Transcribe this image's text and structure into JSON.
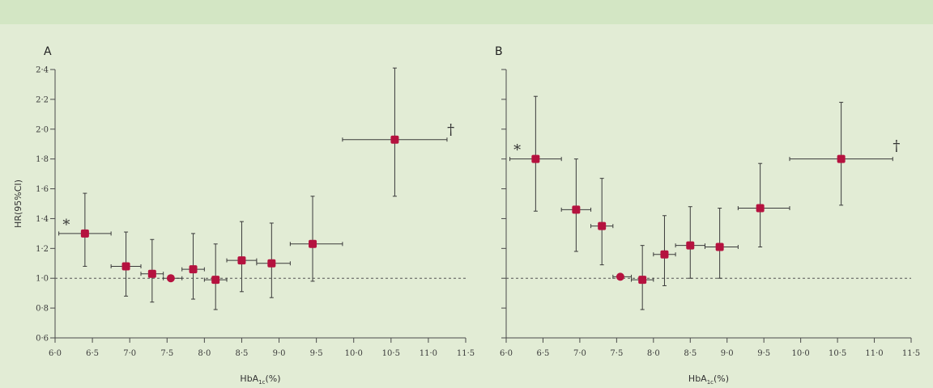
{
  "colors": {
    "background": "#e2ecd5",
    "band": "#d3e6c4",
    "marker": "#b5123f",
    "axis": "#4a4a4a",
    "reference_line": "#555555"
  },
  "chart_data": [
    {
      "type": "scatter",
      "panel_label": "A",
      "xlabel": "HbA",
      "xlabel_sub": "1c",
      "xlabel_unit": "(%)",
      "ylabel": "HR(95%CI)",
      "xlim": [
        6.0,
        11.5
      ],
      "ylim": [
        0.6,
        2.4
      ],
      "x_ticks": [
        "6·0",
        "6·5",
        "7·0",
        "7·5",
        "8·0",
        "8·5",
        "9·0",
        "9·5",
        "10·0",
        "10·5",
        "11·0",
        "11·5"
      ],
      "y_ticks": [
        "0·6",
        "0·8",
        "1·0",
        "1·2",
        "1·4",
        "1·6",
        "1·8",
        "2·0",
        "2·2",
        "2·4"
      ],
      "reference_y": 1.0,
      "points": [
        {
          "x": 6.4,
          "y": 1.3,
          "xlo": 6.05,
          "xhi": 6.75,
          "ylo": 1.08,
          "yhi": 1.57
        },
        {
          "x": 6.95,
          "y": 1.08,
          "xlo": 6.75,
          "xhi": 7.15,
          "ylo": 0.88,
          "yhi": 1.31
        },
        {
          "x": 7.3,
          "y": 1.03,
          "xlo": 7.15,
          "xhi": 7.45,
          "ylo": 0.84,
          "yhi": 1.26
        },
        {
          "x": 7.55,
          "y": 1.0,
          "xlo": 7.45,
          "xhi": 7.7,
          "ylo": 1.0,
          "yhi": 1.0
        },
        {
          "x": 7.85,
          "y": 1.06,
          "xlo": 7.7,
          "xhi": 8.0,
          "ylo": 0.86,
          "yhi": 1.3
        },
        {
          "x": 8.15,
          "y": 0.99,
          "xlo": 8.0,
          "xhi": 8.3,
          "ylo": 0.79,
          "yhi": 1.23
        },
        {
          "x": 8.5,
          "y": 1.12,
          "xlo": 8.3,
          "xhi": 8.7,
          "ylo": 0.91,
          "yhi": 1.38
        },
        {
          "x": 8.9,
          "y": 1.1,
          "xlo": 8.7,
          "xhi": 9.15,
          "ylo": 0.87,
          "yhi": 1.37
        },
        {
          "x": 9.45,
          "y": 1.23,
          "xlo": 9.15,
          "xhi": 9.85,
          "ylo": 0.98,
          "yhi": 1.55
        },
        {
          "x": 10.55,
          "y": 1.93,
          "xlo": 9.85,
          "xhi": 11.25,
          "ylo": 1.55,
          "yhi": 2.41
        }
      ],
      "annotations": [
        {
          "text": "*",
          "x": 6.15,
          "y": 1.36
        },
        {
          "text": "†",
          "x": 11.3,
          "y": 2.0
        }
      ]
    },
    {
      "type": "scatter",
      "panel_label": "B",
      "xlabel": "HbA",
      "xlabel_sub": "1c",
      "xlabel_unit": "(%)",
      "ylabel": "",
      "xlim": [
        6.0,
        11.5
      ],
      "ylim": [
        0.6,
        2.4
      ],
      "x_ticks": [
        "6·0",
        "6·5",
        "7·0",
        "7·5",
        "8·0",
        "8·5",
        "9·0",
        "9·5",
        "10·0",
        "10·5",
        "11·0",
        "11·5"
      ],
      "y_ticks": [],
      "reference_y": 1.0,
      "points": [
        {
          "x": 6.4,
          "y": 1.8,
          "xlo": 6.05,
          "xhi": 6.75,
          "ylo": 1.45,
          "yhi": 2.22
        },
        {
          "x": 6.95,
          "y": 1.46,
          "xlo": 6.75,
          "xhi": 7.15,
          "ylo": 1.18,
          "yhi": 1.8
        },
        {
          "x": 7.3,
          "y": 1.35,
          "xlo": 7.15,
          "xhi": 7.45,
          "ylo": 1.09,
          "yhi": 1.67
        },
        {
          "x": 7.55,
          "y": 1.01,
          "xlo": 7.45,
          "xhi": 7.7,
          "ylo": 1.01,
          "yhi": 1.01
        },
        {
          "x": 7.85,
          "y": 0.99,
          "xlo": 7.7,
          "xhi": 8.0,
          "ylo": 0.79,
          "yhi": 1.22
        },
        {
          "x": 8.15,
          "y": 1.16,
          "xlo": 8.0,
          "xhi": 8.3,
          "ylo": 0.95,
          "yhi": 1.42
        },
        {
          "x": 8.5,
          "y": 1.22,
          "xlo": 8.3,
          "xhi": 8.7,
          "ylo": 1.0,
          "yhi": 1.48
        },
        {
          "x": 8.9,
          "y": 1.21,
          "xlo": 8.7,
          "xhi": 9.15,
          "ylo": 1.0,
          "yhi": 1.47
        },
        {
          "x": 9.45,
          "y": 1.47,
          "xlo": 9.15,
          "xhi": 9.85,
          "ylo": 1.21,
          "yhi": 1.77
        },
        {
          "x": 10.55,
          "y": 1.8,
          "xlo": 9.85,
          "xhi": 11.25,
          "ylo": 1.49,
          "yhi": 2.18
        }
      ],
      "annotations": [
        {
          "text": "*",
          "x": 6.15,
          "y": 1.86
        },
        {
          "text": "†",
          "x": 11.3,
          "y": 1.89
        }
      ]
    }
  ]
}
